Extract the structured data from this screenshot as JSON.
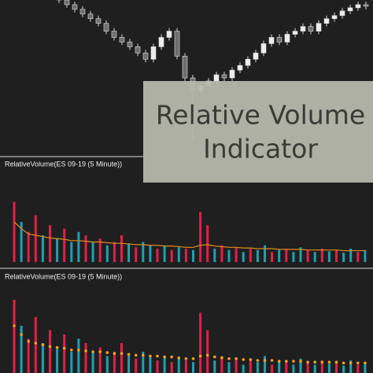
{
  "overlay": {
    "lines": [
      "Relative Volume",
      "Indicator"
    ]
  },
  "chart_data": [
    {
      "type": "candlestick",
      "up_color": "#ececec",
      "down_color": "#6e6e6e",
      "ylim": [
        0,
        100
      ],
      "open": [
        103,
        100,
        97,
        94,
        91,
        88,
        85,
        80,
        76,
        73,
        70,
        66,
        62,
        70,
        76,
        80,
        64,
        50,
        42,
        45,
        48,
        52,
        50,
        55,
        58,
        62,
        66,
        72,
        76,
        73,
        78,
        80,
        83,
        80,
        85,
        88,
        90,
        93,
        95,
        97
      ],
      "high": [
        105,
        102,
        99,
        96,
        93,
        90,
        87,
        82,
        78,
        75,
        72,
        68,
        72,
        78,
        82,
        82,
        66,
        52,
        47,
        50,
        54,
        54,
        57,
        60,
        64,
        68,
        74,
        78,
        78,
        80,
        82,
        85,
        85,
        87,
        90,
        92,
        95,
        97,
        99,
        99
      ],
      "low": [
        98,
        95,
        92,
        89,
        86,
        83,
        78,
        74,
        71,
        68,
        64,
        60,
        60,
        68,
        74,
        62,
        48,
        10,
        40,
        43,
        46,
        48,
        48,
        53,
        56,
        60,
        64,
        70,
        71,
        71,
        76,
        78,
        78,
        78,
        83,
        86,
        88,
        91,
        93,
        94
      ],
      "close": [
        100,
        97,
        94,
        91,
        88,
        85,
        80,
        76,
        73,
        70,
        66,
        62,
        70,
        76,
        80,
        64,
        50,
        42,
        45,
        48,
        52,
        50,
        55,
        58,
        62,
        66,
        72,
        76,
        73,
        78,
        80,
        83,
        80,
        85,
        88,
        90,
        93,
        95,
        97,
        96
      ]
    },
    {
      "type": "bar-line",
      "title": "RelativeVolume(ES 09-19 (5 Minute))",
      "ylim": [
        0,
        100
      ],
      "line_color": "#e08a1e",
      "values": [
        90,
        60,
        45,
        70,
        40,
        55,
        35,
        50,
        30,
        45,
        40,
        30,
        35,
        25,
        30,
        40,
        28,
        22,
        30,
        25,
        20,
        25,
        18,
        22,
        20,
        18,
        75,
        55,
        20,
        25,
        18,
        22,
        15,
        20,
        18,
        25,
        15,
        18,
        20,
        15,
        22,
        18,
        15,
        20,
        16,
        18,
        14,
        20,
        15,
        18
      ],
      "colors": [
        "#e0204a",
        "#20a0b0",
        "#e0204a",
        "#e0204a",
        "#20a0b0",
        "#e0204a",
        "#20a0b0",
        "#e0204a",
        "#20a0b0",
        "#20a0b0",
        "#e0204a",
        "#20a0b0",
        "#e0204a",
        "#20a0b0",
        "#e0204a",
        "#e0204a",
        "#20a0b0",
        "#e0204a",
        "#20a0b0",
        "#20a0b0",
        "#e0204a",
        "#20a0b0",
        "#e0204a",
        "#20a0b0",
        "#e0204a",
        "#20a0b0",
        "#e0204a",
        "#e0204a",
        "#20a0b0",
        "#e0204a",
        "#20a0b0",
        "#e0204a",
        "#20a0b0",
        "#e0204a",
        "#20a0b0",
        "#20a0b0",
        "#e0204a",
        "#20a0b0",
        "#e0204a",
        "#20a0b0",
        "#20a0b0",
        "#e0204a",
        "#20a0b0",
        "#e0204a",
        "#20a0b0",
        "#e0204a",
        "#20a0b0",
        "#20a0b0",
        "#e0204a",
        "#20a0b0"
      ],
      "average": [
        60,
        50,
        42,
        40,
        38,
        36,
        35,
        34,
        32,
        32,
        31,
        30,
        30,
        29,
        28,
        28,
        27,
        26,
        26,
        25,
        25,
        24,
        24,
        23,
        22,
        22,
        25,
        26,
        24,
        23,
        22,
        22,
        21,
        21,
        20,
        20,
        20,
        19,
        19,
        19,
        19,
        18,
        18,
        18,
        18,
        18,
        17,
        17,
        17,
        17
      ]
    },
    {
      "type": "bar-dots",
      "title": "RelativeVolume(ES 09-19 (5 Minute))",
      "ylim": [
        0,
        100
      ],
      "dot_color": "#f0a020",
      "values": [
        90,
        60,
        45,
        70,
        40,
        55,
        35,
        50,
        30,
        45,
        40,
        30,
        35,
        25,
        30,
        40,
        28,
        22,
        30,
        25,
        20,
        25,
        18,
        22,
        20,
        18,
        75,
        55,
        20,
        25,
        18,
        22,
        15,
        20,
        18,
        25,
        15,
        18,
        20,
        15,
        22,
        18,
        15,
        20,
        16,
        18,
        14,
        20,
        15,
        18
      ],
      "colors": [
        "#e0204a",
        "#20a0b0",
        "#e0204a",
        "#e0204a",
        "#20a0b0",
        "#e0204a",
        "#20a0b0",
        "#e0204a",
        "#20a0b0",
        "#20a0b0",
        "#e0204a",
        "#20a0b0",
        "#e0204a",
        "#20a0b0",
        "#e0204a",
        "#e0204a",
        "#20a0b0",
        "#e0204a",
        "#20a0b0",
        "#20a0b0",
        "#e0204a",
        "#20a0b0",
        "#e0204a",
        "#20a0b0",
        "#e0204a",
        "#20a0b0",
        "#e0204a",
        "#e0204a",
        "#20a0b0",
        "#e0204a",
        "#20a0b0",
        "#e0204a",
        "#20a0b0",
        "#e0204a",
        "#20a0b0",
        "#20a0b0",
        "#e0204a",
        "#20a0b0",
        "#e0204a",
        "#20a0b0",
        "#20a0b0",
        "#e0204a",
        "#20a0b0",
        "#e0204a",
        "#20a0b0",
        "#e0204a",
        "#20a0b0",
        "#20a0b0",
        "#e0204a",
        "#20a0b0"
      ],
      "average": [
        60,
        50,
        42,
        40,
        38,
        36,
        35,
        34,
        32,
        32,
        31,
        30,
        30,
        29,
        28,
        28,
        27,
        26,
        26,
        25,
        25,
        24,
        24,
        23,
        22,
        22,
        25,
        26,
        24,
        23,
        22,
        22,
        21,
        21,
        20,
        20,
        20,
        19,
        19,
        19,
        19,
        18,
        18,
        18,
        18,
        18,
        17,
        17,
        17,
        17
      ]
    }
  ]
}
